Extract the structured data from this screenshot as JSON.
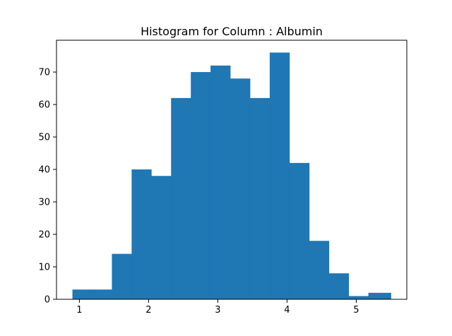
{
  "chart_data": {
    "type": "bar",
    "title": "Histogram for Column : Albumin",
    "xlabel": "",
    "ylabel": "",
    "bar_color": "#1f77b4",
    "bin_edges": [
      0.9,
      1.185,
      1.47,
      1.755,
      2.04,
      2.325,
      2.61,
      2.895,
      3.18,
      3.465,
      3.75,
      4.035,
      4.32,
      4.605,
      4.89,
      5.175,
      5.5
    ],
    "values": [
      3,
      3,
      14,
      40,
      38,
      62,
      70,
      72,
      68,
      62,
      76,
      42,
      18,
      8,
      1,
      2
    ],
    "xlim": [
      0.67,
      5.73
    ],
    "ylim": [
      0,
      79.8
    ],
    "xticks": [
      1,
      2,
      3,
      4,
      5
    ],
    "yticks": [
      0,
      10,
      20,
      30,
      40,
      50,
      60,
      70
    ],
    "grid": false,
    "legend": "none"
  }
}
